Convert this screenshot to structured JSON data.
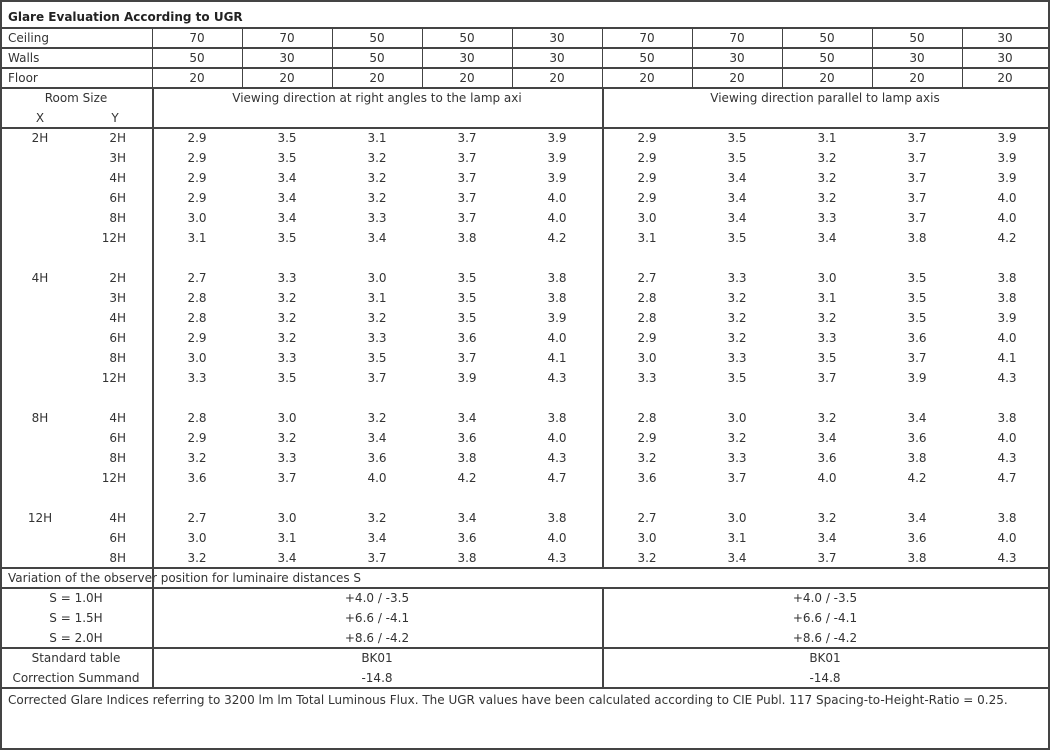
{
  "title": "Glare Evaluation According to UGR",
  "reflectances": {
    "ceiling": {
      "label": "Ceiling",
      "values": [
        "70",
        "70",
        "50",
        "50",
        "30",
        "70",
        "70",
        "50",
        "50",
        "30"
      ]
    },
    "walls": {
      "label": "Walls",
      "values": [
        "50",
        "30",
        "50",
        "30",
        "30",
        "50",
        "30",
        "50",
        "30",
        "30"
      ]
    },
    "floor": {
      "label": "Floor",
      "values": [
        "20",
        "20",
        "20",
        "20",
        "20",
        "20",
        "20",
        "20",
        "20",
        "20"
      ]
    }
  },
  "room_size": {
    "label": "Room Size",
    "x_label": "X",
    "y_label": "Y"
  },
  "directions": [
    "Viewing direction at right angles to the lamp axi",
    "Viewing direction parallel to lamp axis"
  ],
  "groups": [
    {
      "x": "2H",
      "rows": [
        {
          "y": "2H",
          "left": [
            "2.9",
            "3.5",
            "3.1",
            "3.7",
            "3.9"
          ],
          "right": [
            "2.9",
            "3.5",
            "3.1",
            "3.7",
            "3.9"
          ]
        },
        {
          "y": "3H",
          "left": [
            "2.9",
            "3.5",
            "3.2",
            "3.7",
            "3.9"
          ],
          "right": [
            "2.9",
            "3.5",
            "3.2",
            "3.7",
            "3.9"
          ]
        },
        {
          "y": "4H",
          "left": [
            "2.9",
            "3.4",
            "3.2",
            "3.7",
            "3.9"
          ],
          "right": [
            "2.9",
            "3.4",
            "3.2",
            "3.7",
            "3.9"
          ]
        },
        {
          "y": "6H",
          "left": [
            "2.9",
            "3.4",
            "3.2",
            "3.7",
            "4.0"
          ],
          "right": [
            "2.9",
            "3.4",
            "3.2",
            "3.7",
            "4.0"
          ]
        },
        {
          "y": "8H",
          "left": [
            "3.0",
            "3.4",
            "3.3",
            "3.7",
            "4.0"
          ],
          "right": [
            "3.0",
            "3.4",
            "3.3",
            "3.7",
            "4.0"
          ]
        },
        {
          "y": "12H",
          "left": [
            "3.1",
            "3.5",
            "3.4",
            "3.8",
            "4.2"
          ],
          "right": [
            "3.1",
            "3.5",
            "3.4",
            "3.8",
            "4.2"
          ]
        }
      ]
    },
    {
      "x": "4H",
      "rows": [
        {
          "y": "2H",
          "left": [
            "2.7",
            "3.3",
            "3.0",
            "3.5",
            "3.8"
          ],
          "right": [
            "2.7",
            "3.3",
            "3.0",
            "3.5",
            "3.8"
          ]
        },
        {
          "y": "3H",
          "left": [
            "2.8",
            "3.2",
            "3.1",
            "3.5",
            "3.8"
          ],
          "right": [
            "2.8",
            "3.2",
            "3.1",
            "3.5",
            "3.8"
          ]
        },
        {
          "y": "4H",
          "left": [
            "2.8",
            "3.2",
            "3.2",
            "3.5",
            "3.9"
          ],
          "right": [
            "2.8",
            "3.2",
            "3.2",
            "3.5",
            "3.9"
          ]
        },
        {
          "y": "6H",
          "left": [
            "2.9",
            "3.2",
            "3.3",
            "3.6",
            "4.0"
          ],
          "right": [
            "2.9",
            "3.2",
            "3.3",
            "3.6",
            "4.0"
          ]
        },
        {
          "y": "8H",
          "left": [
            "3.0",
            "3.3",
            "3.5",
            "3.7",
            "4.1"
          ],
          "right": [
            "3.0",
            "3.3",
            "3.5",
            "3.7",
            "4.1"
          ]
        },
        {
          "y": "12H",
          "left": [
            "3.3",
            "3.5",
            "3.7",
            "3.9",
            "4.3"
          ],
          "right": [
            "3.3",
            "3.5",
            "3.7",
            "3.9",
            "4.3"
          ]
        }
      ]
    },
    {
      "x": "8H",
      "rows": [
        {
          "y": "4H",
          "left": [
            "2.8",
            "3.0",
            "3.2",
            "3.4",
            "3.8"
          ],
          "right": [
            "2.8",
            "3.0",
            "3.2",
            "3.4",
            "3.8"
          ]
        },
        {
          "y": "6H",
          "left": [
            "2.9",
            "3.2",
            "3.4",
            "3.6",
            "4.0"
          ],
          "right": [
            "2.9",
            "3.2",
            "3.4",
            "3.6",
            "4.0"
          ]
        },
        {
          "y": "8H",
          "left": [
            "3.2",
            "3.3",
            "3.6",
            "3.8",
            "4.3"
          ],
          "right": [
            "3.2",
            "3.3",
            "3.6",
            "3.8",
            "4.3"
          ]
        },
        {
          "y": "12H",
          "left": [
            "3.6",
            "3.7",
            "4.0",
            "4.2",
            "4.7"
          ],
          "right": [
            "3.6",
            "3.7",
            "4.0",
            "4.2",
            "4.7"
          ]
        }
      ]
    },
    {
      "x": "12H",
      "rows": [
        {
          "y": "4H",
          "left": [
            "2.7",
            "3.0",
            "3.2",
            "3.4",
            "3.8"
          ],
          "right": [
            "2.7",
            "3.0",
            "3.2",
            "3.4",
            "3.8"
          ]
        },
        {
          "y": "6H",
          "left": [
            "3.0",
            "3.1",
            "3.4",
            "3.6",
            "4.0"
          ],
          "right": [
            "3.0",
            "3.1",
            "3.4",
            "3.6",
            "4.0"
          ]
        },
        {
          "y": "8H",
          "left": [
            "3.2",
            "3.4",
            "3.7",
            "3.8",
            "4.3"
          ],
          "right": [
            "3.2",
            "3.4",
            "3.7",
            "3.8",
            "4.3"
          ]
        }
      ]
    }
  ],
  "variation": {
    "label": "Variation of the observer position for luminaire distances S",
    "rows": [
      {
        "s": "S = 1.0H",
        "left": "+4.0 / -3.5",
        "right": "+4.0 / -3.5"
      },
      {
        "s": "S = 1.5H",
        "left": "+6.6 / -4.1",
        "right": "+6.6 / -4.1"
      },
      {
        "s": "S = 2.0H",
        "left": "+8.6 / -4.2",
        "right": "+8.6 / -4.2"
      }
    ]
  },
  "standard_table": {
    "label": "Standard table",
    "left": "BK01",
    "right": "BK01"
  },
  "correction_summand": {
    "label": "Correction Summand",
    "left": "-14.8",
    "right": "-14.8"
  },
  "footnote": "Corrected Glare Indices referring to 3200 lm lm Total Luminous Flux. The UGR values have been calculated according to CIE Publ. 117    Spacing-to-Height-Ratio = 0.25."
}
